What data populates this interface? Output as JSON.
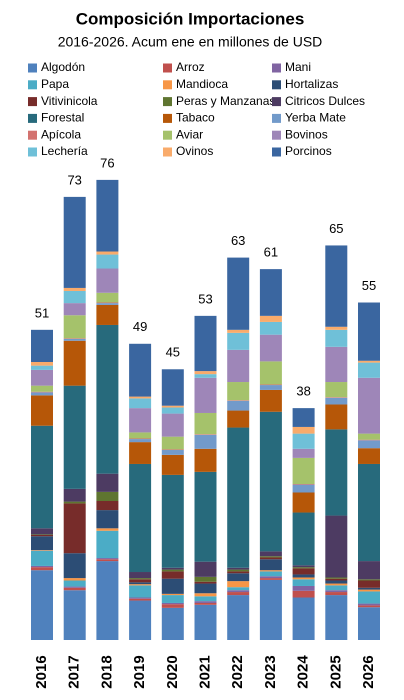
{
  "chart_data": {
    "type": "stacked_bar",
    "title": "Composición Importaciones",
    "subtitle": "2016-2026. Acum ene en millones de USD",
    "categories": [
      "2016",
      "2017",
      "2018",
      "2019",
      "2020",
      "2021",
      "2022",
      "2023",
      "2024",
      "2025",
      "2026"
    ],
    "totals": [
      51,
      73,
      76,
      49,
      45,
      53,
      63,
      61,
      38,
      65,
      55
    ],
    "ylim": [
      0,
      80
    ],
    "series": [
      {
        "name": "Algodón",
        "color": "#4f81bd",
        "values": [
          11.5,
          8.2,
          13,
          6.5,
          5.3,
          5.8,
          7.4,
          9.9,
          7,
          7.4,
          5.4
        ]
      },
      {
        "name": "Arroz",
        "color": "#c0504d",
        "values": [
          0.5,
          0.4,
          0.3,
          0.3,
          0.6,
          0.3,
          0.5,
          0.3,
          1.1,
          0.5,
          0.3
        ]
      },
      {
        "name": "Mani",
        "color": "#8064a2",
        "values": [
          0.2,
          0.2,
          0.2,
          0.2,
          0.2,
          0.3,
          0.3,
          0.3,
          0.8,
          0.3,
          0.3
        ]
      },
      {
        "name": "Papa",
        "color": "#4bacc6",
        "values": [
          2.5,
          1,
          4.5,
          2,
          1.3,
          0.8,
          0.5,
          0.8,
          1.1,
          0.8,
          2
        ]
      },
      {
        "name": "Mandioca",
        "color": "#f79646",
        "values": [
          0.1,
          0.4,
          0.4,
          0.2,
          0.2,
          0.5,
          1,
          0.2,
          0.3,
          0.3,
          0.3
        ]
      },
      {
        "name": "Hortalizas",
        "color": "#2c4d75",
        "values": [
          2.3,
          4.1,
          3,
          0.3,
          2.5,
          1.6,
          1.3,
          1.8,
          0.5,
          0.5,
          0.3
        ]
      },
      {
        "name": "Vitivinicola",
        "color": "#772c2a",
        "values": [
          0.2,
          8.2,
          1.5,
          0.5,
          1.2,
          0.3,
          0.3,
          0.3,
          1,
          0.3,
          1.2
        ]
      },
      {
        "name": "Peras y Manzanas",
        "color": "#5f7530",
        "values": [
          0.1,
          0.3,
          1.5,
          0.2,
          0.3,
          0.8,
          0.3,
          0.2,
          0.2,
          0.2,
          0.2
        ]
      },
      {
        "name": "Citricos Dulces",
        "color": "#4d3b62",
        "values": [
          1,
          2.1,
          3,
          1,
          0.3,
          2.5,
          0.3,
          0.8,
          0.3,
          10.2,
          3
        ]
      },
      {
        "name": "Forestal",
        "color": "#276a7c",
        "values": [
          16.9,
          17,
          24.5,
          17.8,
          15.3,
          14.8,
          23.1,
          23,
          8.7,
          14.2,
          16
        ]
      },
      {
        "name": "Tabaco",
        "color": "#b65708",
        "values": [
          5,
          7.4,
          3.3,
          3.6,
          3.3,
          3.8,
          2.8,
          3.6,
          3.3,
          4.1,
          2.6
        ]
      },
      {
        "name": "Yerba Mate",
        "color": "#729aca",
        "values": [
          0.5,
          0.3,
          0.3,
          0.5,
          0.8,
          2.3,
          1.6,
          0.8,
          1.3,
          1.1,
          1.3
        ]
      },
      {
        "name": "Apícola",
        "color": "#d3726f",
        "values": [
          0.1,
          0.1,
          0.1,
          0.1,
          0.1,
          0.1,
          0.1,
          0.1,
          0.1,
          0.1,
          0.1
        ]
      },
      {
        "name": "Aviar",
        "color": "#a5c26b",
        "values": [
          1,
          3.8,
          1.6,
          1,
          2.1,
          3.5,
          3,
          3.8,
          4.3,
          2.5,
          1
        ]
      },
      {
        "name": "Bovinos",
        "color": "#9e86b8",
        "values": [
          2.6,
          2,
          4,
          4,
          3.8,
          5.8,
          5.3,
          4.4,
          1.5,
          5.8,
          9.2
        ]
      },
      {
        "name": "Lechería",
        "color": "#6fc0d8",
        "values": [
          0.7,
          2,
          2.3,
          1.6,
          1,
          0.6,
          2.8,
          2.1,
          2.5,
          2.8,
          2.5
        ]
      },
      {
        "name": "Ovinos",
        "color": "#f9ab6b",
        "values": [
          0.6,
          0.5,
          0.5,
          0.3,
          0.3,
          0.5,
          0.5,
          1,
          1.1,
          0.5,
          0.3
        ]
      },
      {
        "name": "Porcinos",
        "color": "#3a66a0",
        "values": [
          5.3,
          15,
          11.8,
          8.7,
          6,
          9.1,
          11.9,
          7.7,
          3.1,
          13.4,
          9.6
        ]
      }
    ]
  }
}
